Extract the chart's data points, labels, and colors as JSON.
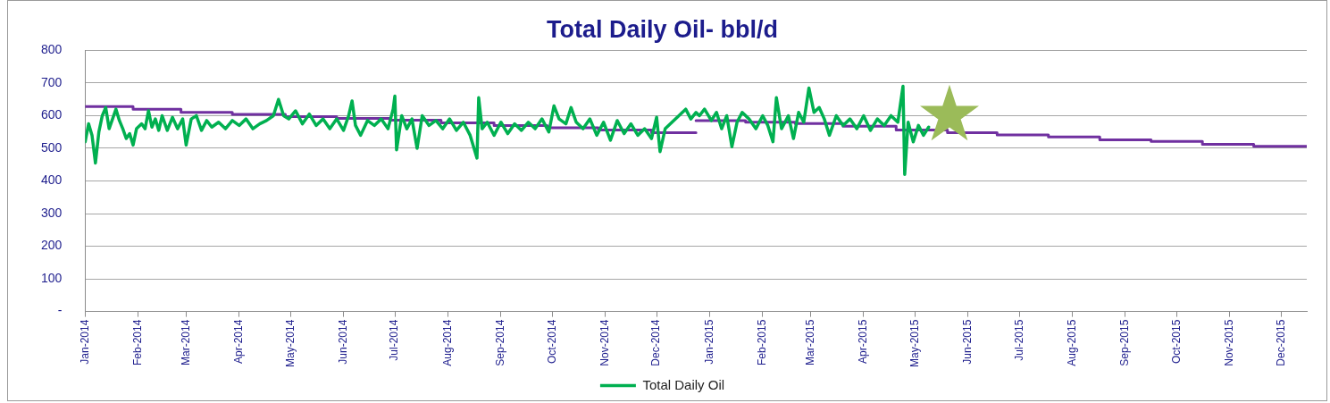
{
  "chart_data": {
    "type": "line",
    "title": "Total Daily Oil- bbl/d",
    "xlim": [
      "2014-01-01",
      "2015-12-16"
    ],
    "xticks": [
      {
        "value": "2014-01-01",
        "label": "Jan-2014"
      },
      {
        "value": "2014-02-01",
        "label": "Feb-2014"
      },
      {
        "value": "2014-03-01",
        "label": "Mar-2014"
      },
      {
        "value": "2014-04-01",
        "label": "Apr-2014"
      },
      {
        "value": "2014-05-01",
        "label": "May-2014"
      },
      {
        "value": "2014-06-01",
        "label": "Jun-2014"
      },
      {
        "value": "2014-07-01",
        "label": "Jul-2014"
      },
      {
        "value": "2014-08-01",
        "label": "Aug-2014"
      },
      {
        "value": "2014-09-01",
        "label": "Sep-2014"
      },
      {
        "value": "2014-10-01",
        "label": "Oct-2014"
      },
      {
        "value": "2014-11-01",
        "label": "Nov-2014"
      },
      {
        "value": "2014-12-01",
        "label": "Dec-2014"
      },
      {
        "value": "2015-01-01",
        "label": "Jan-2015"
      },
      {
        "value": "2015-02-01",
        "label": "Feb-2015"
      },
      {
        "value": "2015-03-01",
        "label": "Mar-2015"
      },
      {
        "value": "2015-04-01",
        "label": "Apr-2015"
      },
      {
        "value": "2015-05-01",
        "label": "May-2015"
      },
      {
        "value": "2015-06-01",
        "label": "Jun-2015"
      },
      {
        "value": "2015-07-01",
        "label": "Jul-2015"
      },
      {
        "value": "2015-08-01",
        "label": "Aug-2015"
      },
      {
        "value": "2015-09-01",
        "label": "Sep-2015"
      },
      {
        "value": "2015-10-01",
        "label": "Oct-2015"
      },
      {
        "value": "2015-11-01",
        "label": "Nov-2015"
      },
      {
        "value": "2015-12-01",
        "label": "Dec-2015"
      }
    ],
    "ylim": [
      0,
      800
    ],
    "yticks": [
      {
        "value": 0,
        "label": "-"
      },
      100,
      200,
      300,
      400,
      500,
      600,
      700,
      800
    ],
    "grid": "y",
    "legend": "bottom",
    "marker": "none",
    "series": [
      {
        "name": "Total Daily Oil",
        "color": "#00b050",
        "x": [
          "2014-01-01",
          "2014-01-03",
          "2014-01-05",
          "2014-01-07",
          "2014-01-09",
          "2014-01-11",
          "2014-01-13",
          "2014-01-15",
          "2014-01-17",
          "2014-01-19",
          "2014-01-21",
          "2014-01-23",
          "2014-01-25",
          "2014-01-27",
          "2014-01-29",
          "2014-01-31",
          "2014-02-03",
          "2014-02-05",
          "2014-02-07",
          "2014-02-09",
          "2014-02-11",
          "2014-02-13",
          "2014-02-15",
          "2014-02-18",
          "2014-02-21",
          "2014-02-24",
          "2014-02-27",
          "2014-03-01",
          "2014-03-04",
          "2014-03-07",
          "2014-03-10",
          "2014-03-13",
          "2014-03-16",
          "2014-03-20",
          "2014-03-24",
          "2014-03-28",
          "2014-04-01",
          "2014-04-05",
          "2014-04-09",
          "2014-04-13",
          "2014-04-17",
          "2014-04-21",
          "2014-04-24",
          "2014-04-27",
          "2014-04-30",
          "2014-05-04",
          "2014-05-08",
          "2014-05-12",
          "2014-05-16",
          "2014-05-20",
          "2014-05-24",
          "2014-05-28",
          "2014-06-01",
          "2014-06-04",
          "2014-06-06",
          "2014-06-08",
          "2014-06-11",
          "2014-06-15",
          "2014-06-19",
          "2014-06-23",
          "2014-06-27",
          "2014-06-30",
          "2014-07-01",
          "2014-07-02",
          "2014-07-05",
          "2014-07-08",
          "2014-07-11",
          "2014-07-14",
          "2014-07-17",
          "2014-07-21",
          "2014-07-25",
          "2014-07-29",
          "2014-08-02",
          "2014-08-06",
          "2014-08-10",
          "2014-08-14",
          "2014-08-18",
          "2014-08-19",
          "2014-08-21",
          "2014-08-24",
          "2014-08-28",
          "2014-09-01",
          "2014-09-05",
          "2014-09-09",
          "2014-09-13",
          "2014-09-17",
          "2014-09-21",
          "2014-09-25",
          "2014-09-29",
          "2014-10-02",
          "2014-10-05",
          "2014-10-09",
          "2014-10-12",
          "2014-10-15",
          "2014-10-19",
          "2014-10-23",
          "2014-10-27",
          "2014-10-31",
          "2014-11-04",
          "2014-11-08",
          "2014-11-12",
          "2014-11-16",
          "2014-11-20",
          "2014-11-24",
          "2014-11-28",
          "2014-12-01",
          "2014-12-03",
          "2014-12-06",
          "2014-12-10",
          "2014-12-14",
          "2014-12-18",
          "2014-12-21",
          "2014-12-24",
          "2014-12-26",
          "2014-12-29",
          "2015-01-02",
          "2015-01-05",
          "2015-01-08",
          "2015-01-11",
          "2015-01-14",
          "2015-01-17",
          "2015-01-20",
          "2015-01-24",
          "2015-01-28",
          "2015-02-01",
          "2015-02-04",
          "2015-02-07",
          "2015-02-09",
          "2015-02-12",
          "2015-02-16",
          "2015-02-19",
          "2015-02-22",
          "2015-02-25",
          "2015-02-28",
          "2015-03-03",
          "2015-03-06",
          "2015-03-09",
          "2015-03-12",
          "2015-03-16",
          "2015-03-20",
          "2015-03-24",
          "2015-03-28",
          "2015-04-01",
          "2015-04-05",
          "2015-04-09",
          "2015-04-13",
          "2015-04-17",
          "2015-04-21",
          "2015-04-24",
          "2015-04-25",
          "2015-04-27",
          "2015-04-30",
          "2015-05-03",
          "2015-05-06",
          "2015-05-09"
        ],
        "values": [
          520,
          575,
          540,
          455,
          550,
          600,
          625,
          560,
          590,
          620,
          585,
          560,
          530,
          545,
          510,
          560,
          575,
          560,
          615,
          565,
          590,
          555,
          600,
          555,
          595,
          560,
          590,
          510,
          590,
          600,
          555,
          585,
          565,
          580,
          560,
          585,
          570,
          590,
          560,
          575,
          585,
          600,
          650,
          600,
          590,
          615,
          575,
          605,
          570,
          590,
          560,
          590,
          555,
          600,
          645,
          570,
          540,
          585,
          570,
          590,
          560,
          620,
          660,
          495,
          600,
          560,
          590,
          500,
          600,
          570,
          585,
          560,
          590,
          555,
          580,
          540,
          470,
          655,
          560,
          580,
          540,
          580,
          545,
          575,
          555,
          580,
          560,
          590,
          550,
          630,
          590,
          575,
          625,
          580,
          560,
          590,
          540,
          580,
          525,
          585,
          545,
          575,
          540,
          560,
          530,
          595,
          490,
          560,
          580,
          600,
          620,
          590,
          610,
          600,
          620,
          585,
          610,
          560,
          600,
          505,
          580,
          610,
          590,
          560,
          600,
          570,
          520,
          655,
          560,
          600,
          530,
          610,
          580,
          685,
          610,
          625,
          590,
          540,
          600,
          570,
          590,
          560,
          600,
          555,
          590,
          570,
          600,
          580,
          690,
          420,
          580,
          520,
          570,
          540,
          565
        ]
      },
      {
        "type": "step",
        "color": "#7030a0",
        "x": [
          "2014-01-01",
          "2014-01-29",
          "2014-02-26",
          "2014-03-28",
          "2014-04-28",
          "2014-05-28",
          "2014-06-28",
          "2014-07-28",
          "2014-08-28",
          "2014-09-28",
          "2014-10-28",
          "2014-11-28",
          "2014-12-24"
        ],
        "values": [
          628,
          620,
          610,
          604,
          597,
          592,
          586,
          578,
          570,
          563,
          556,
          548,
          548
        ]
      },
      {
        "type": "step",
        "color": "#7030a0",
        "x": [
          "2014-12-24",
          "2015-01-22",
          "2015-02-20",
          "2015-03-20",
          "2015-04-20",
          "2015-05-20",
          "2015-06-18",
          "2015-07-18",
          "2015-08-17",
          "2015-09-16",
          "2015-10-16",
          "2015-11-15",
          "2015-12-16"
        ],
        "values": [
          585,
          580,
          576,
          568,
          556,
          548,
          541,
          535,
          526,
          521,
          512,
          506,
          506
        ]
      }
    ]
  }
}
